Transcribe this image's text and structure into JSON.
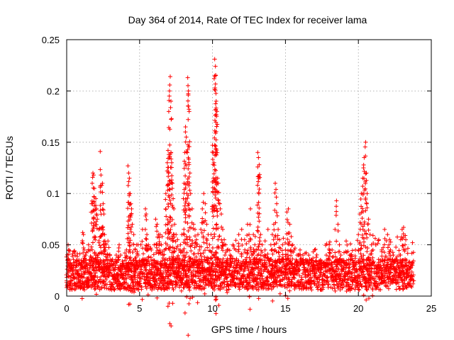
{
  "chart_data": {
    "type": "scatter",
    "title": "Day 364 of 2014, Rate Of TEC Index for receiver lama",
    "xlabel": "GPS time / hours",
    "ylabel": "ROTI / TECUs",
    "xlim": [
      0,
      25
    ],
    "ylim": [
      0,
      0.25
    ],
    "x_ticks": [
      0,
      5,
      10,
      15,
      20,
      25
    ],
    "x_tick_labels": [
      "0",
      "5",
      "10",
      "15",
      "20",
      "25"
    ],
    "y_ticks": [
      0,
      0.05,
      0.1,
      0.15,
      0.2,
      0.25
    ],
    "y_tick_labels": [
      "0",
      "0.05",
      "0.1",
      "0.15",
      "0.2",
      "0.25"
    ],
    "grid": true,
    "marker": "+",
    "color": "#ff0000",
    "series": [
      {
        "points": [
          [
            0.0,
            0.015
          ],
          [
            0.1,
            0.05
          ],
          [
            0.15,
            0.045
          ],
          [
            0.2,
            0.03
          ],
          [
            0.3,
            0.02
          ],
          [
            0.4,
            0.025
          ],
          [
            0.5,
            0.018
          ],
          [
            0.6,
            0.012
          ],
          [
            0.7,
            0.022
          ],
          [
            0.8,
            0.03
          ],
          [
            0.9,
            0.02
          ],
          [
            1.0,
            0.035
          ],
          [
            1.1,
            0.062
          ],
          [
            1.15,
            0.06
          ],
          [
            1.2,
            0.045
          ],
          [
            1.3,
            0.04
          ],
          [
            1.4,
            0.03
          ],
          [
            1.5,
            0.05
          ],
          [
            1.6,
            0.035
          ],
          [
            1.7,
            0.09
          ],
          [
            1.75,
            0.11
          ],
          [
            1.8,
            0.12
          ],
          [
            1.85,
            0.118
          ],
          [
            1.9,
            0.105
          ],
          [
            2.0,
            0.095
          ],
          [
            2.05,
            0.085
          ],
          [
            2.1,
            0.075
          ],
          [
            2.2,
            0.065
          ],
          [
            2.3,
            0.141
          ],
          [
            2.35,
            0.118
          ],
          [
            2.4,
            0.108
          ],
          [
            2.45,
            0.11
          ],
          [
            2.5,
            0.09
          ],
          [
            2.55,
            0.08
          ],
          [
            2.6,
            0.06
          ],
          [
            2.7,
            0.05
          ],
          [
            2.8,
            0.04
          ],
          [
            2.9,
            0.035
          ],
          [
            3.0,
            0.03
          ],
          [
            3.2,
            0.025
          ],
          [
            3.4,
            0.04
          ],
          [
            3.5,
            0.035
          ],
          [
            3.6,
            0.05
          ],
          [
            3.7,
            0.04
          ],
          [
            3.8,
            0.03
          ],
          [
            4.0,
            0.035
          ],
          [
            4.1,
            0.045
          ],
          [
            4.2,
            0.127
          ],
          [
            4.25,
            0.12
          ],
          [
            4.3,
            0.115
          ],
          [
            4.35,
            0.1
          ],
          [
            4.4,
            0.09
          ],
          [
            4.45,
            0.085
          ],
          [
            4.5,
            0.07
          ],
          [
            4.6,
            0.06
          ],
          [
            4.7,
            0.045
          ],
          [
            4.8,
            0.05
          ],
          [
            4.9,
            0.04
          ],
          [
            5.0,
            0.035
          ],
          [
            5.2,
            0.065
          ],
          [
            5.4,
            0.085
          ],
          [
            5.45,
            0.08
          ],
          [
            5.5,
            0.06
          ],
          [
            5.6,
            0.05
          ],
          [
            5.8,
            0.045
          ],
          [
            6.0,
            0.05
          ],
          [
            6.1,
            0.075
          ],
          [
            6.2,
            0.07
          ],
          [
            6.3,
            0.06
          ],
          [
            6.4,
            0.06
          ],
          [
            6.5,
            0.05
          ],
          [
            6.6,
            0.04
          ],
          [
            6.7,
            0.045
          ],
          [
            6.8,
            0.1
          ],
          [
            6.9,
            0.13
          ],
          [
            6.95,
            0.142
          ],
          [
            7.0,
            0.18
          ],
          [
            7.05,
            0.2
          ],
          [
            7.1,
            0.214
          ],
          [
            7.15,
            0.19
          ],
          [
            7.2,
            0.13
          ],
          [
            7.25,
            0.11
          ],
          [
            7.3,
            0.095
          ],
          [
            7.35,
            0.085
          ],
          [
            7.4,
            0.07
          ],
          [
            7.5,
            0.06
          ],
          [
            7.6,
            0.055
          ],
          [
            7.7,
            0.045
          ],
          [
            7.8,
            0.05
          ],
          [
            7.9,
            0.06
          ],
          [
            8.0,
            0.095
          ],
          [
            8.05,
            0.11
          ],
          [
            8.1,
            0.14
          ],
          [
            8.15,
            0.165
          ],
          [
            8.2,
            0.155
          ],
          [
            8.3,
            0.213
          ],
          [
            8.35,
            0.2
          ],
          [
            8.4,
            0.18
          ],
          [
            8.45,
            0.12
          ],
          [
            8.5,
            0.1
          ],
          [
            8.6,
            0.085
          ],
          [
            8.7,
            0.07
          ],
          [
            8.8,
            0.065
          ],
          [
            8.9,
            0.055
          ],
          [
            9.0,
            0.06
          ],
          [
            9.1,
            0.045
          ],
          [
            9.2,
            0.065
          ],
          [
            9.3,
            0.085
          ],
          [
            9.4,
            0.1
          ],
          [
            9.5,
            0.09
          ],
          [
            9.6,
            0.07
          ],
          [
            9.7,
            0.06
          ],
          [
            9.8,
            0.05
          ],
          [
            9.9,
            0.06
          ],
          [
            10.0,
            0.147
          ],
          [
            10.05,
            0.14
          ],
          [
            10.1,
            0.13
          ],
          [
            10.15,
            0.231
          ],
          [
            10.2,
            0.224
          ],
          [
            10.22,
            0.215
          ],
          [
            10.25,
            0.19
          ],
          [
            10.3,
            0.18
          ],
          [
            10.35,
            0.115
          ],
          [
            10.4,
            0.11
          ],
          [
            10.5,
            0.09
          ],
          [
            10.6,
            0.08
          ],
          [
            10.7,
            0.065
          ],
          [
            10.8,
            0.055
          ],
          [
            10.9,
            0.05
          ],
          [
            11.0,
            0.045
          ],
          [
            11.2,
            0.04
          ],
          [
            11.4,
            0.05
          ],
          [
            11.6,
            0.045
          ],
          [
            11.8,
            0.06
          ],
          [
            12.0,
            0.065
          ],
          [
            12.2,
            0.055
          ],
          [
            12.4,
            0.07
          ],
          [
            12.5,
            0.06
          ],
          [
            12.6,
            0.085
          ],
          [
            12.8,
            0.06
          ],
          [
            12.9,
            0.05
          ],
          [
            13.0,
            0.045
          ],
          [
            13.1,
            0.14
          ],
          [
            13.15,
            0.135
          ],
          [
            13.2,
            0.128
          ],
          [
            13.3,
            0.06
          ],
          [
            13.4,
            0.05
          ],
          [
            13.6,
            0.045
          ],
          [
            13.8,
            0.065
          ],
          [
            14.0,
            0.05
          ],
          [
            14.1,
            0.06
          ],
          [
            14.2,
            0.07
          ],
          [
            14.3,
            0.11
          ],
          [
            14.35,
            0.104
          ],
          [
            14.4,
            0.09
          ],
          [
            14.5,
            0.065
          ],
          [
            14.6,
            0.055
          ],
          [
            14.8,
            0.05
          ],
          [
            15.0,
            0.045
          ],
          [
            15.1,
            0.082
          ],
          [
            15.2,
            0.085
          ],
          [
            15.3,
            0.07
          ],
          [
            15.4,
            0.058
          ],
          [
            15.5,
            0.05
          ],
          [
            15.6,
            0.045
          ],
          [
            15.8,
            0.04
          ],
          [
            16.0,
            0.045
          ],
          [
            16.2,
            0.04
          ],
          [
            16.4,
            0.035
          ],
          [
            16.6,
            0.04
          ],
          [
            16.8,
            0.035
          ],
          [
            17.0,
            0.045
          ],
          [
            17.2,
            0.03
          ],
          [
            17.4,
            0.035
          ],
          [
            17.6,
            0.03
          ],
          [
            17.8,
            0.04
          ],
          [
            18.0,
            0.05
          ],
          [
            18.2,
            0.045
          ],
          [
            18.4,
            0.065
          ],
          [
            18.5,
            0.093
          ],
          [
            18.6,
            0.07
          ],
          [
            18.7,
            0.05
          ],
          [
            18.8,
            0.04
          ],
          [
            19.0,
            0.035
          ],
          [
            19.2,
            0.03
          ],
          [
            19.4,
            0.04
          ],
          [
            19.6,
            0.035
          ],
          [
            19.8,
            0.045
          ],
          [
            20.0,
            0.06
          ],
          [
            20.1,
            0.08
          ],
          [
            20.2,
            0.1
          ],
          [
            20.3,
            0.115
          ],
          [
            20.35,
            0.125
          ],
          [
            20.4,
            0.135
          ],
          [
            20.5,
            0.15
          ],
          [
            20.55,
            0.12
          ],
          [
            20.6,
            0.1
          ],
          [
            20.7,
            0.075
          ],
          [
            20.8,
            0.06
          ],
          [
            20.9,
            0.05
          ],
          [
            21.0,
            0.045
          ],
          [
            21.2,
            0.05
          ],
          [
            21.4,
            0.055
          ],
          [
            21.6,
            0.045
          ],
          [
            21.8,
            0.065
          ],
          [
            22.0,
            0.06
          ],
          [
            22.1,
            0.05
          ],
          [
            22.2,
            0.045
          ],
          [
            22.4,
            0.04
          ],
          [
            22.6,
            0.035
          ],
          [
            22.8,
            0.04
          ],
          [
            22.9,
            0.055
          ],
          [
            23.0,
            0.065
          ],
          [
            23.1,
            0.067
          ],
          [
            23.2,
            0.05
          ],
          [
            23.3,
            0.03
          ],
          [
            23.4,
            0.025
          ],
          [
            23.6,
            0.02
          ],
          [
            23.8,
            0.015
          ]
        ]
      }
    ]
  }
}
